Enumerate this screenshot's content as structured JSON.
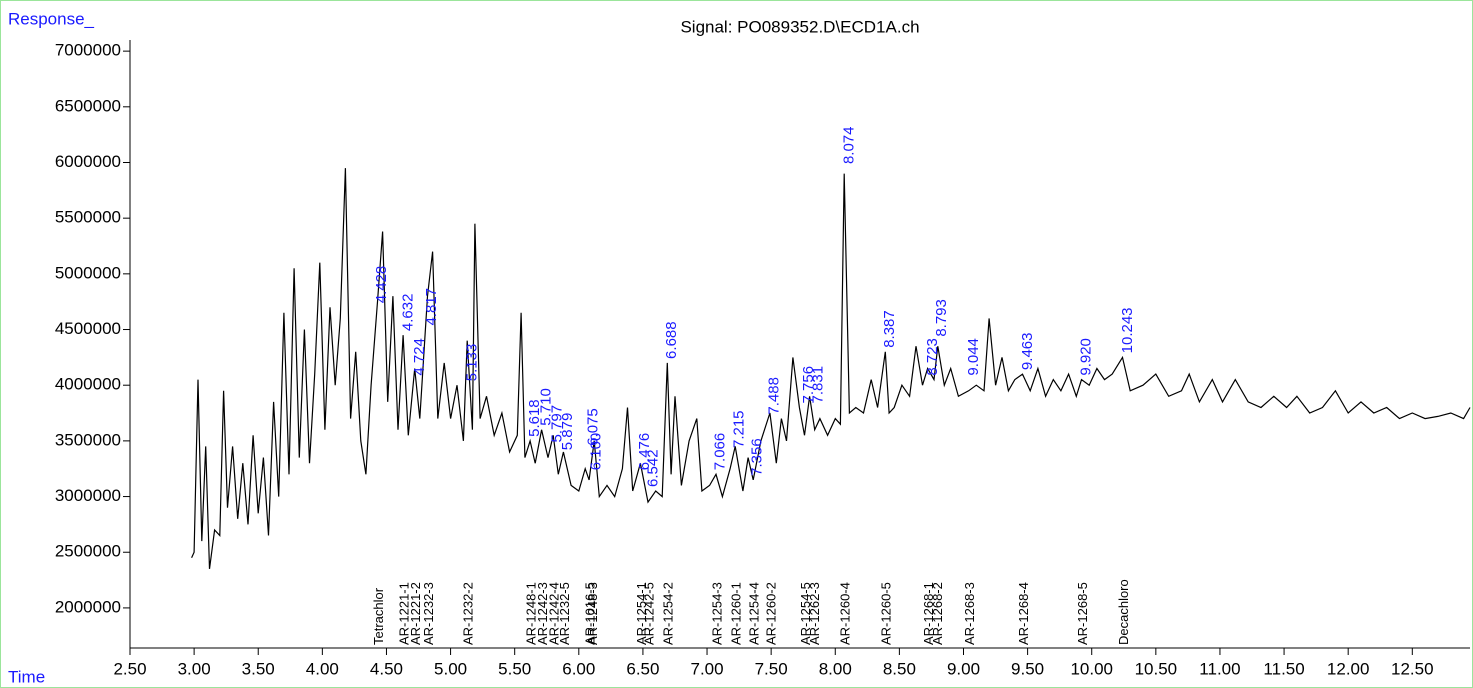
{
  "chart_data": {
    "type": "line",
    "title": "Signal: PO089352.D\\ECD1A.ch",
    "y_label": "Response_",
    "x_label": "Time",
    "xlim": [
      2.5,
      12.95
    ],
    "ylim": [
      1640000,
      7100000
    ],
    "xticks": [
      {
        "value": 2.5,
        "label": "2.50"
      },
      {
        "value": 3,
        "label": "3.00"
      },
      {
        "value": 3.5,
        "label": "3.50"
      },
      {
        "value": 4,
        "label": "4.00"
      },
      {
        "value": 4.5,
        "label": "4.50"
      },
      {
        "value": 5,
        "label": "5.00"
      },
      {
        "value": 5.5,
        "label": "5.50"
      },
      {
        "value": 6,
        "label": "6.00"
      },
      {
        "value": 6.5,
        "label": "6.50"
      },
      {
        "value": 7,
        "label": "7.00"
      },
      {
        "value": 7.5,
        "label": "7.50"
      },
      {
        "value": 8,
        "label": "8.00"
      },
      {
        "value": 8.5,
        "label": "8.50"
      },
      {
        "value": 9,
        "label": "9.00"
      },
      {
        "value": 9.5,
        "label": "9.50"
      },
      {
        "value": 10,
        "label": "10.00"
      },
      {
        "value": 10.5,
        "label": "10.50"
      },
      {
        "value": 11,
        "label": "11.00"
      },
      {
        "value": 11.5,
        "label": "11.50"
      },
      {
        "value": 12,
        "label": "12.00"
      },
      {
        "value": 12.5,
        "label": "12.50"
      }
    ],
    "yticks": [
      2000000,
      2500000,
      3000000,
      3500000,
      4000000,
      4500000,
      5000000,
      5500000,
      6000000,
      6500000,
      7000000
    ],
    "x": [
      2.98,
      3.0,
      3.03,
      3.06,
      3.09,
      3.12,
      3.16,
      3.2,
      3.23,
      3.26,
      3.3,
      3.34,
      3.38,
      3.42,
      3.46,
      3.5,
      3.54,
      3.58,
      3.62,
      3.66,
      3.7,
      3.74,
      3.78,
      3.82,
      3.86,
      3.9,
      3.94,
      3.98,
      4.02,
      4.06,
      4.1,
      4.14,
      4.18,
      4.22,
      4.26,
      4.3,
      4.34,
      4.38,
      4.43,
      4.47,
      4.51,
      4.55,
      4.59,
      4.63,
      4.67,
      4.72,
      4.76,
      4.82,
      4.86,
      4.9,
      4.95,
      5.0,
      5.05,
      5.1,
      5.13,
      5.17,
      5.19,
      5.23,
      5.28,
      5.34,
      5.4,
      5.46,
      5.52,
      5.55,
      5.58,
      5.62,
      5.66,
      5.71,
      5.76,
      5.8,
      5.84,
      5.88,
      5.94,
      6.0,
      6.05,
      6.08,
      6.12,
      6.16,
      6.22,
      6.28,
      6.34,
      6.38,
      6.42,
      6.48,
      6.54,
      6.6,
      6.65,
      6.69,
      6.72,
      6.75,
      6.8,
      6.86,
      6.92,
      6.96,
      7.02,
      7.07,
      7.12,
      7.18,
      7.22,
      7.28,
      7.32,
      7.36,
      7.42,
      7.49,
      7.54,
      7.58,
      7.62,
      7.67,
      7.72,
      7.76,
      7.8,
      7.84,
      7.88,
      7.94,
      8.0,
      8.04,
      8.07,
      8.11,
      8.16,
      8.22,
      8.28,
      8.33,
      8.39,
      8.42,
      8.46,
      8.52,
      8.58,
      8.63,
      8.68,
      8.72,
      8.77,
      8.8,
      8.85,
      8.9,
      8.96,
      9.04,
      9.1,
      9.16,
      9.2,
      9.25,
      9.3,
      9.35,
      9.4,
      9.46,
      9.52,
      9.58,
      9.64,
      9.7,
      9.76,
      9.82,
      9.88,
      9.92,
      9.98,
      10.04,
      10.1,
      10.16,
      10.24,
      10.3,
      10.4,
      10.5,
      10.6,
      10.7,
      10.76,
      10.84,
      10.94,
      11.02,
      11.12,
      11.22,
      11.32,
      11.42,
      11.52,
      11.6,
      11.7,
      11.8,
      11.9,
      12.0,
      12.1,
      12.2,
      12.3,
      12.4,
      12.5,
      12.6,
      12.7,
      12.8,
      12.9,
      12.95
    ],
    "series": [
      {
        "name": "ECD1A",
        "color": "#000000",
        "values": [
          2450000.0,
          2500000.0,
          4050000.0,
          2600000.0,
          3450000.0,
          2350000.0,
          2700000.0,
          2650000.0,
          3950000.0,
          2900000.0,
          3450000.0,
          2800000.0,
          3300000.0,
          2750000.0,
          3550000.0,
          2850000.0,
          3350000.0,
          2650000.0,
          3850000.0,
          3000000.0,
          4650000.0,
          3200000.0,
          5050000.0,
          3350000.0,
          4500000.0,
          3300000.0,
          4100000.0,
          5100000.0,
          3600000.0,
          4700000.0,
          4000000.0,
          4600000.0,
          5950000.0,
          3700000.0,
          4300000.0,
          3500000.0,
          3200000.0,
          4000000.0,
          4750000.0,
          5380000.0,
          3850000.0,
          4800000.0,
          3600000.0,
          4450000.0,
          3550000.0,
          4150000.0,
          3700000.0,
          4800000.0,
          5200000.0,
          3700000.0,
          4200000.0,
          3700000.0,
          4000000.0,
          3500000.0,
          4400000.0,
          3600000.0,
          5450000.0,
          3700000.0,
          3900000.0,
          3550000.0,
          3750000.0,
          3400000.0,
          3550000.0,
          4650000.0,
          3350000.0,
          3500000.0,
          3300000.0,
          3600000.0,
          3350000.0,
          3550000.0,
          3200000.0,
          3400000.0,
          3100000.0,
          3050000.0,
          3250000.0,
          3150000.0,
          3500000.0,
          3000000.0,
          3100000.0,
          3000000.0,
          3250000.0,
          3800000.0,
          3050000.0,
          3300000.0,
          2950000.0,
          3050000.0,
          3000000.0,
          4200000.0,
          3200000.0,
          3900000.0,
          3100000.0,
          3500000.0,
          3700000.0,
          3050000.0,
          3100000.0,
          3200000.0,
          3000000.0,
          3250000.0,
          3450000.0,
          3050000.0,
          3350000.0,
          3150000.0,
          3500000.0,
          3750000.0,
          3300000.0,
          3700000.0,
          3500000.0,
          4250000.0,
          3800000.0,
          3550000.0,
          3900000.0,
          3600000.0,
          3700000.0,
          3550000.0,
          3700000.0,
          3650000.0,
          5900000.0,
          3750000.0,
          3800000.0,
          3750000.0,
          4050000.0,
          3800000.0,
          4300000.0,
          3750000.0,
          3800000.0,
          4000000.0,
          3900000.0,
          4350000.0,
          4000000.0,
          4150000.0,
          4050000.0,
          4350000.0,
          4000000.0,
          4150000.0,
          3900000.0,
          3950000.0,
          4000000.0,
          3950000.0,
          4600000.0,
          4000000.0,
          4250000.0,
          3950000.0,
          4050000.0,
          4100000.0,
          3950000.0,
          4150000.0,
          3900000.0,
          4050000.0,
          3950000.0,
          4100000.0,
          3900000.0,
          4050000.0,
          4000000.0,
          4150000.0,
          4050000.0,
          4100000.0,
          4250000.0,
          3950000.0,
          4000000.0,
          4100000.0,
          3900000.0,
          3950000.0,
          4100000.0,
          3850000.0,
          4050000.0,
          3850000.0,
          4050000.0,
          3850000.0,
          3800000.0,
          3900000.0,
          3800000.0,
          3900000.0,
          3750000.0,
          3800000.0,
          3950000.0,
          3750000.0,
          3850000.0,
          3750000.0,
          3800000.0,
          3700000.0,
          3750000.0,
          3700000.0,
          3720000.0,
          3750000.0,
          3700000.0,
          3800000.0
        ]
      }
    ],
    "peaks": {
      "times": [
        4.428,
        4.632,
        4.724,
        4.817,
        5.133,
        5.618,
        5.71,
        5.797,
        5.879,
        6.075,
        6.1,
        6.476,
        6.542,
        6.688,
        7.066,
        7.215,
        7.356,
        7.488,
        7.756,
        7.831,
        8.074,
        8.387,
        8.723,
        8.793,
        9.044,
        9.463,
        9.92,
        10.243
      ],
      "time_labels": [
        "4.428",
        "4.632",
        "4.724",
        "4.817",
        "5.133",
        "5.618",
        "5.710",
        "5.797",
        "5.879",
        "6.075",
        "6.100",
        "6.476",
        "6.542",
        "6.688",
        "7.066",
        "7.215",
        "7.356",
        "7.488",
        "7.756",
        "7.831",
        "8.074",
        "8.387",
        "8.723",
        "8.793",
        "9.044",
        "9.463",
        "9.920",
        "10.243"
      ],
      "heights": [
        4700000.0,
        4450000.0,
        4050000.0,
        4500000.0,
        4000000.0,
        3500000.0,
        3600000.0,
        3450000.0,
        3380000.0,
        3420000.0,
        3200000.0,
        3200000.0,
        3050000.0,
        4200000.0,
        3200000.0,
        3400000.0,
        3150000.0,
        3700000.0,
        3800000.0,
        3800000.0,
        5950000.0,
        4300000.0,
        4050000.0,
        4400000.0,
        4050000.0,
        4100000.0,
        4050000.0,
        4250000.0
      ]
    },
    "compounds": {
      "names": [
        "Tetrachlor",
        "AR-1221-1",
        "AR-1221-2",
        "AR-1232-3",
        "AR-1232-2",
        "AR-1248-1",
        "AR-1242-3",
        "AR-1242-4",
        "AR-1232-5",
        "AR-1016-5",
        "AR-1248-3",
        "AR-1254-1",
        "AR-1242-5",
        "AR-1254-2",
        "AR-1254-3",
        "AR-1260-1",
        "AR-1254-4",
        "AR-1260-2",
        "AR-1254-5",
        "AR-1262-3",
        "AR-1260-4",
        "AR-1260-5",
        "AR-1268-1",
        "AR-1268-2",
        "AR-1268-3",
        "AR-1268-4",
        "AR-1268-5",
        "Decachloro"
      ],
      "times": [
        4.43,
        4.63,
        4.72,
        4.82,
        5.13,
        5.62,
        5.71,
        5.8,
        5.88,
        6.08,
        6.1,
        6.48,
        6.54,
        6.69,
        7.07,
        7.22,
        7.36,
        7.49,
        7.76,
        7.83,
        8.07,
        8.39,
        8.72,
        8.79,
        9.04,
        9.46,
        9.92,
        10.24
      ]
    }
  }
}
